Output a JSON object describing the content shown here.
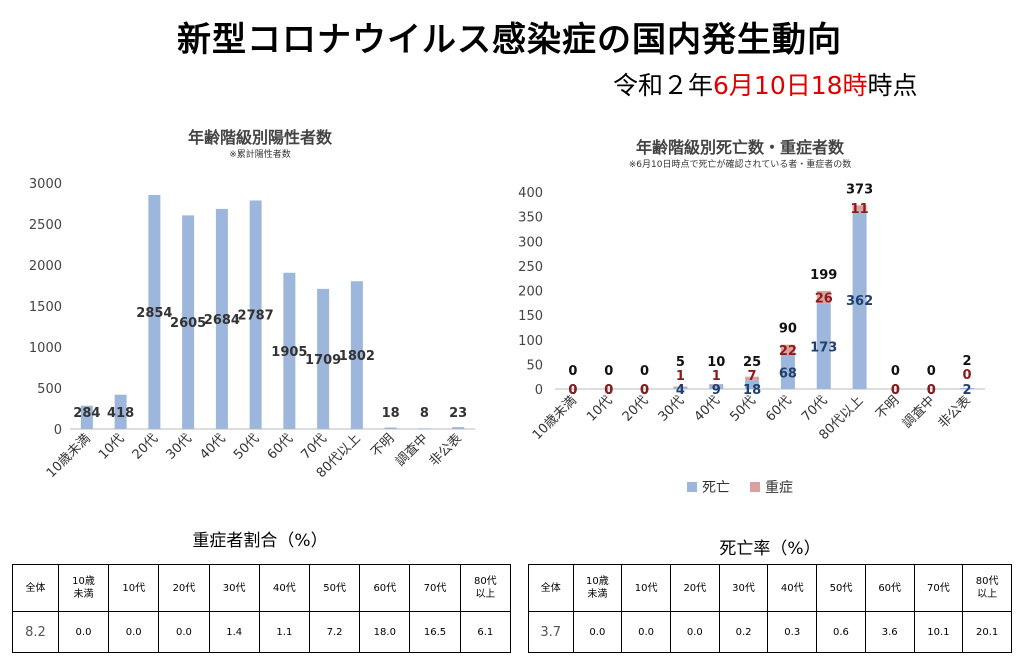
{
  "header": {
    "title": "新型コロナウイルス感染症の国内発生動向",
    "asof_parts": [
      "令和２年",
      "6月",
      "10日",
      "18時",
      "時点"
    ]
  },
  "chart_data": [
    {
      "type": "bar",
      "title": "年齢階級別陽性者数",
      "subtitle": "※累計陽性者数",
      "categories": [
        "10歳未満",
        "10代",
        "20代",
        "30代",
        "40代",
        "50代",
        "60代",
        "70代",
        "80代以上",
        "不明",
        "調査中",
        "非公表"
      ],
      "values": [
        284,
        418,
        2854,
        2605,
        2684,
        2787,
        1905,
        1709,
        1802,
        18,
        8,
        23
      ],
      "ylim": [
        0,
        3000
      ],
      "yticks": [
        "0",
        "500",
        "1000",
        "1500",
        "2000",
        "2500",
        "3000"
      ],
      "color": "#9db6dc"
    },
    {
      "type": "bar",
      "stacked": true,
      "title": "年齢階級別死亡数・重症者数",
      "subtitle": "※6月10日時点で死亡が確認されている者・重症者の数",
      "categories": [
        "10歳未満",
        "10代",
        "20代",
        "30代",
        "40代",
        "50代",
        "60代",
        "70代",
        "80代以上",
        "不明",
        "調査中",
        "非公表"
      ],
      "series": [
        {
          "name": "死亡",
          "values": [
            0,
            0,
            0,
            4,
            9,
            18,
            68,
            173,
            362,
            0,
            0,
            2
          ],
          "color": "#9db6dc"
        },
        {
          "name": "重症",
          "values": [
            0,
            0,
            0,
            1,
            1,
            7,
            22,
            26,
            11,
            0,
            0,
            0
          ],
          "color": "#dda0a0"
        }
      ],
      "totals": [
        0,
        0,
        0,
        5,
        10,
        25,
        90,
        199,
        373,
        0,
        0,
        2
      ],
      "ylim": [
        0,
        400
      ],
      "yticks": [
        "0",
        "50",
        "100",
        "150",
        "200",
        "250",
        "300",
        "350",
        "400"
      ],
      "legend": "bottom"
    }
  ],
  "tables": [
    {
      "title": "重症者割合（%）",
      "headers": [
        "全体",
        "10歳\n未満",
        "10代",
        "20代",
        "30代",
        "40代",
        "50代",
        "60代",
        "70代",
        "80代\n以上"
      ],
      "values": [
        "8.2",
        "0.0",
        "0.0",
        "0.0",
        "1.4",
        "1.1",
        "7.2",
        "18.0",
        "16.5",
        "6.1"
      ]
    },
    {
      "title": "死亡率（%）",
      "headers": [
        "全体",
        "10歳\n未満",
        "10代",
        "20代",
        "30代",
        "40代",
        "50代",
        "60代",
        "70代",
        "80代\n以上"
      ],
      "values": [
        "3.7",
        "0.0",
        "0.0",
        "0.0",
        "0.2",
        "0.3",
        "0.6",
        "3.6",
        "10.1",
        "20.1"
      ]
    }
  ]
}
